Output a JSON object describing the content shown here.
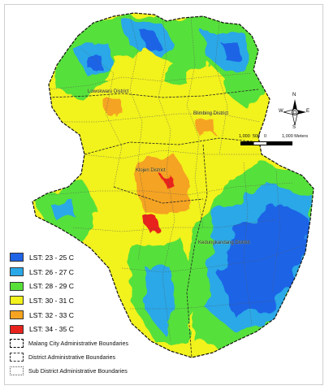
{
  "legend": {
    "lst_classes": [
      {
        "label": "LST: 23 - 25 C",
        "color": "#1f63e6"
      },
      {
        "label": "LST: 26 - 27 C",
        "color": "#29a8e8"
      },
      {
        "label": "LST: 28 - 29 C",
        "color": "#57e03a"
      },
      {
        "label": "LST: 30 - 31 C",
        "color": "#f2f21d"
      },
      {
        "label": "LST: 32 - 33 C",
        "color": "#f5a321"
      },
      {
        "label": "LST: 34 - 35 C",
        "color": "#e8231d"
      }
    ],
    "boundaries": [
      {
        "label": "Malang City Administrative Boundaries"
      },
      {
        "label": "District Administrative Boundaries"
      },
      {
        "label": "Sub District Administrative Boundaries"
      }
    ]
  },
  "districts": [
    {
      "label": "Lowokwaru District"
    },
    {
      "label": "Blimbing District"
    },
    {
      "label": "Klojen District"
    },
    {
      "label": "Kedungkandang District"
    }
  ],
  "north_arrow": {
    "n": "N",
    "s": "S",
    "e": "E",
    "w": "W"
  },
  "scale_bar": {
    "labels": [
      "1,000",
      "500",
      "0",
      "1,000 Meters"
    ]
  },
  "colors": {
    "outside": "#ffffff",
    "border": "#333333"
  }
}
